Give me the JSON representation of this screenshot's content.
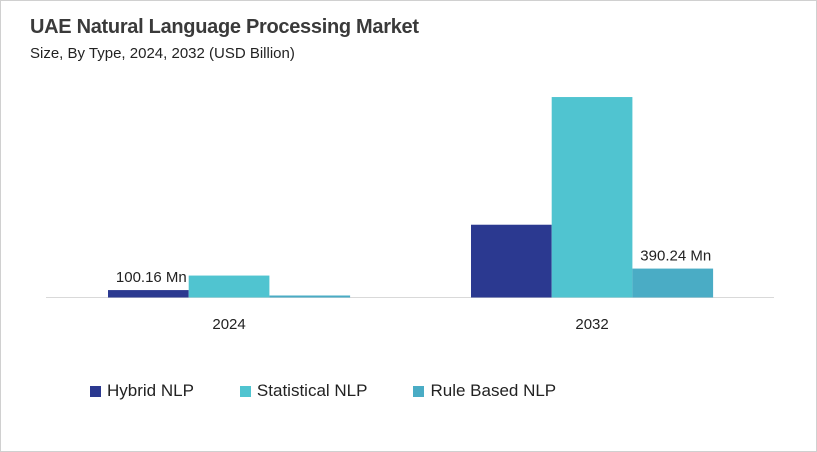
{
  "title": "UAE Natural Language Processing Market",
  "subtitle": "Size, By Type, 2024, 2032 (USD Billion)",
  "chart_data": {
    "type": "bar",
    "title": "UAE Natural Language Processing Market",
    "subtitle": "Size, By Type, 2024, 2032 (USD Billion)",
    "categories": [
      "2024",
      "2032"
    ],
    "series": [
      {
        "name": "Hybrid NLP",
        "color": "#2b3990",
        "values": [
          100.16,
          982
        ]
      },
      {
        "name": "Statistical NLP",
        "color": "#50c4d0",
        "values": [
          296,
          2705
        ]
      },
      {
        "name": "Rule Based NLP",
        "color": "#4aacc5",
        "values": [
          27,
          390.24
        ]
      }
    ],
    "data_labels": [
      {
        "series": 0,
        "category": 0,
        "text": "100.16 Mn"
      },
      {
        "series": 2,
        "category": 1,
        "text": "390.24 Mn"
      }
    ],
    "ylim": [
      0,
      2800
    ],
    "xlabel": "",
    "ylabel": "",
    "grid": false,
    "y_axis_visible": false,
    "legend": "bottom"
  }
}
